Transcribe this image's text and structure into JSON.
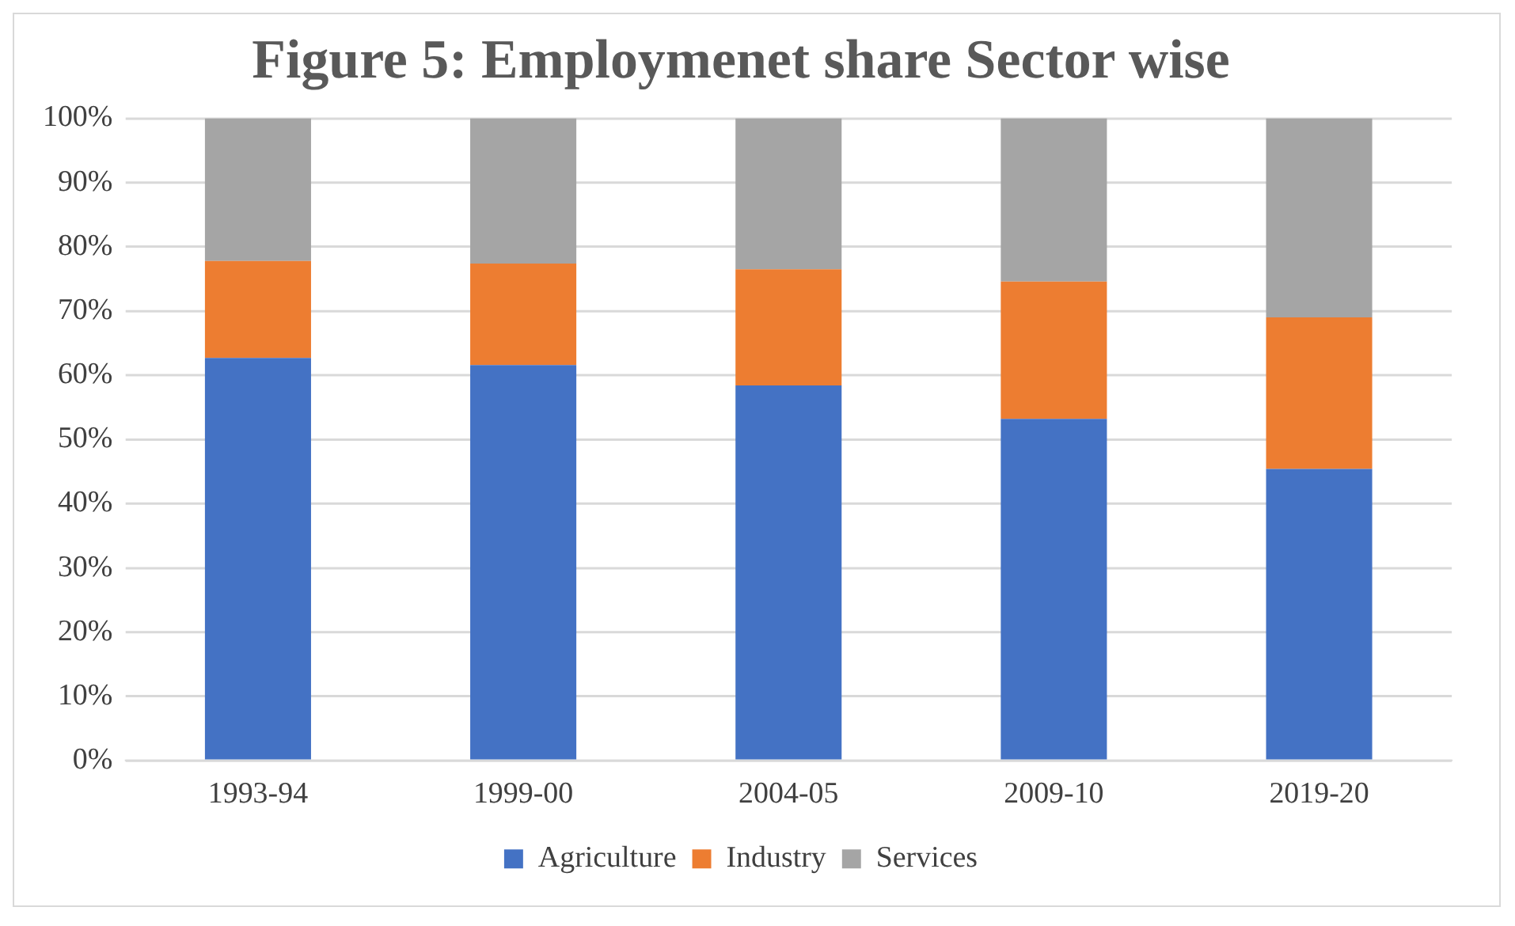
{
  "chart_data": {
    "type": "bar",
    "title": "Figure 5: Employmenet share Sector wise",
    "categories": [
      "1993-94",
      "1999-00",
      "2004-05",
      "2009-10",
      "2019-20"
    ],
    "stacked": true,
    "series": [
      {
        "name": "Agriculture",
        "color": "#4472c4",
        "values": [
          62.7,
          61.6,
          58.4,
          53.2,
          45.4
        ]
      },
      {
        "name": "Industry",
        "color": "#ed7d31",
        "values": [
          15.1,
          15.8,
          18.1,
          21.4,
          23.6
        ]
      },
      {
        "name": "Services",
        "color": "#a5a5a5",
        "values": [
          22.2,
          22.6,
          23.5,
          25.4,
          31.0
        ]
      }
    ],
    "ylim": [
      0,
      100
    ],
    "yticks": [
      {
        "value": 0,
        "label": "0%"
      },
      {
        "value": 10,
        "label": "10%"
      },
      {
        "value": 20,
        "label": "20%"
      },
      {
        "value": 30,
        "label": "30%"
      },
      {
        "value": 40,
        "label": "40%"
      },
      {
        "value": 50,
        "label": "50%"
      },
      {
        "value": 60,
        "label": "60%"
      },
      {
        "value": 70,
        "label": "70%"
      },
      {
        "value": 80,
        "label": "80%"
      },
      {
        "value": 90,
        "label": "90%"
      },
      {
        "value": 100,
        "label": "100%"
      }
    ],
    "grid": "y",
    "legend": "bottom"
  }
}
